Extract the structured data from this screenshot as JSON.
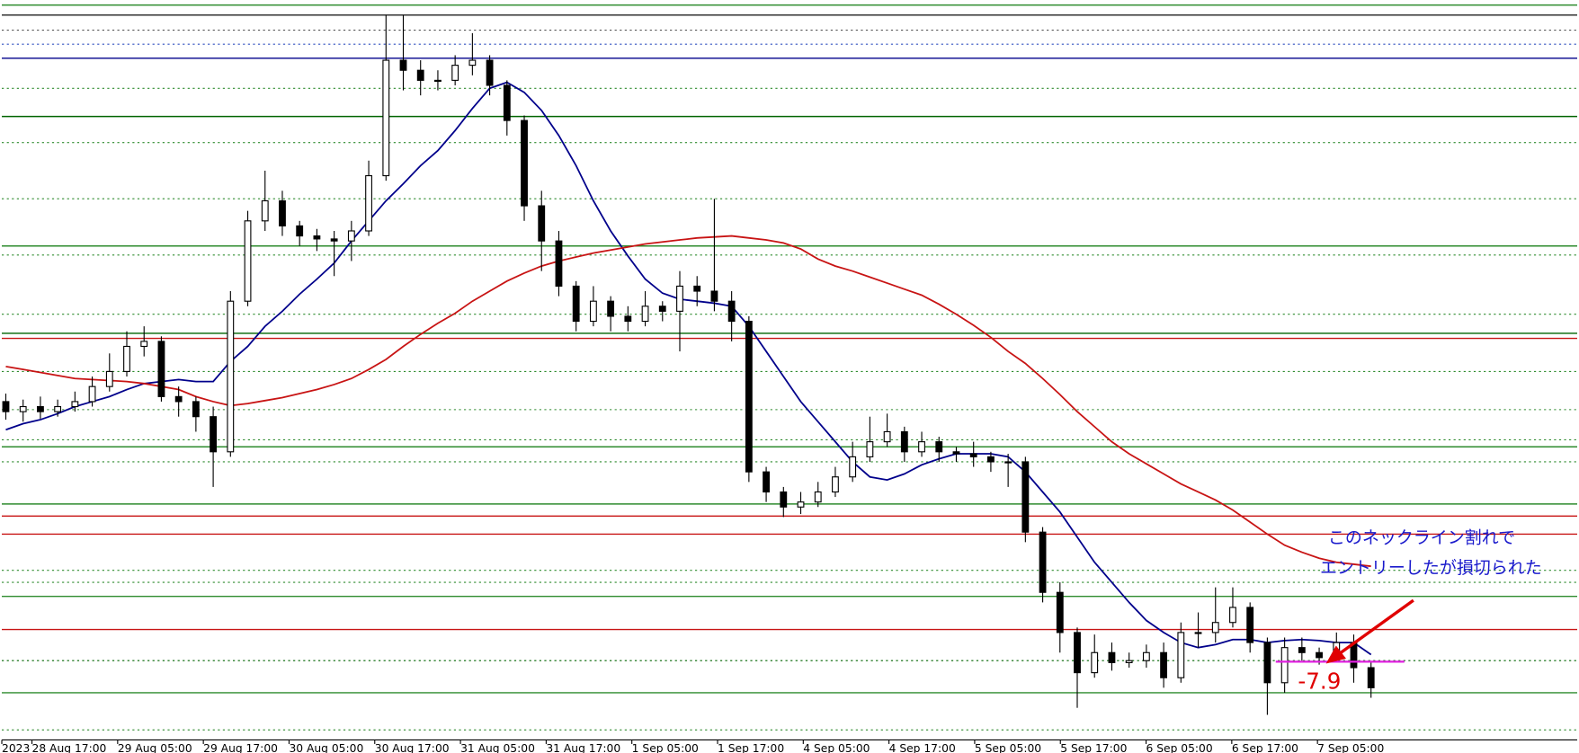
{
  "chart_data": {
    "type": "candlestick",
    "ylim": [
      0,
      750
    ],
    "x_labels": [
      "2023",
      "28 Aug 17:00",
      "29 Aug 05:00",
      "29 Aug 17:00",
      "30 Aug 05:00",
      "30 Aug 17:00",
      "31 Aug 05:00",
      "31 Aug 17:00",
      "1 Sep 05:00",
      "1 Sep 17:00",
      "4 Sep 05:00",
      "4 Sep 17:00",
      "5 Sep 05:00",
      "5 Sep 17:00",
      "6 Sep 05:00",
      "6 Sep 17:00",
      "7 Sep 05:00"
    ],
    "open": [
      350,
      340,
      345,
      340,
      345,
      350,
      365,
      380,
      405,
      410,
      355,
      350,
      335,
      300,
      450,
      530,
      550,
      525,
      515,
      512,
      510,
      520,
      575,
      690,
      680,
      670,
      670,
      685,
      690,
      665,
      630,
      545,
      510,
      465,
      430,
      450,
      435,
      430,
      445,
      440,
      465,
      460,
      450,
      430,
      280,
      260,
      245,
      250,
      260,
      275,
      295,
      310,
      320,
      300,
      310,
      300,
      298,
      295,
      290,
      290,
      220,
      160,
      120,
      80,
      100,
      90,
      92,
      100,
      75,
      120,
      120,
      130,
      145,
      110,
      70,
      105,
      100,
      95,
      110,
      85
    ],
    "high": [
      358,
      352,
      355,
      352,
      360,
      375,
      398,
      420,
      425,
      415,
      365,
      355,
      345,
      460,
      540,
      580,
      560,
      530,
      522,
      520,
      530,
      590,
      735,
      735,
      690,
      680,
      695,
      717,
      695,
      670,
      635,
      560,
      520,
      470,
      465,
      455,
      445,
      460,
      450,
      480,
      475,
      552,
      460,
      435,
      285,
      265,
      260,
      270,
      285,
      310,
      335,
      338,
      325,
      320,
      315,
      305,
      310,
      300,
      298,
      295,
      225,
      170,
      125,
      118,
      110,
      100,
      108,
      110,
      130,
      140,
      165,
      165,
      150,
      115,
      115,
      115,
      105,
      120,
      118,
      90
    ],
    "low": [
      332,
      330,
      333,
      335,
      340,
      345,
      360,
      375,
      395,
      350,
      335,
      320,
      265,
      295,
      445,
      520,
      515,
      505,
      500,
      475,
      490,
      515,
      570,
      660,
      655,
      660,
      665,
      675,
      655,
      615,
      530,
      480,
      455,
      420,
      425,
      420,
      420,
      425,
      430,
      400,
      445,
      440,
      410,
      270,
      250,
      235,
      238,
      245,
      255,
      270,
      290,
      305,
      290,
      295,
      290,
      290,
      285,
      280,
      265,
      210,
      150,
      100,
      45,
      75,
      82,
      85,
      85,
      65,
      70,
      105,
      110,
      125,
      100,
      38,
      60,
      92,
      88,
      90,
      70,
      55
    ],
    "close": [
      340,
      345,
      340,
      345,
      350,
      365,
      380,
      405,
      410,
      355,
      350,
      335,
      300,
      450,
      530,
      550,
      525,
      515,
      512,
      510,
      520,
      575,
      690,
      680,
      670,
      670,
      685,
      690,
      665,
      630,
      545,
      510,
      465,
      430,
      450,
      435,
      430,
      445,
      440,
      465,
      460,
      450,
      430,
      280,
      260,
      245,
      250,
      260,
      275,
      295,
      310,
      320,
      300,
      310,
      300,
      298,
      295,
      290,
      290,
      220,
      160,
      120,
      80,
      100,
      90,
      92,
      100,
      75,
      120,
      120,
      130,
      145,
      110,
      70,
      105,
      100,
      95,
      110,
      85,
      65
    ],
    "moving_averages": [
      {
        "color": "#00008b",
        "values": [
          322,
          328,
          332,
          338,
          345,
          350,
          355,
          362,
          368,
          370,
          372,
          370,
          370,
          390,
          405,
          425,
          440,
          457,
          472,
          488,
          510,
          530,
          550,
          567,
          585,
          600,
          620,
          642,
          662,
          668,
          658,
          640,
          615,
          585,
          550,
          520,
          495,
          472,
          458,
          452,
          450,
          448,
          445,
          425,
          400,
          375,
          350,
          330,
          310,
          290,
          275,
          272,
          278,
          287,
          293,
          298,
          298,
          298,
          295,
          280,
          260,
          240,
          215,
          190,
          170,
          150,
          132,
          120,
          110,
          105,
          108,
          113,
          113,
          110,
          112,
          113,
          112,
          110,
          110,
          98
        ]
      },
      {
        "color": "#c81414",
        "values": [
          385,
          382,
          379,
          376,
          373,
          372,
          371,
          370,
          368,
          365,
          362,
          355,
          350,
          346,
          348,
          351,
          354,
          358,
          362,
          367,
          373,
          382,
          392,
          405,
          417,
          428,
          438,
          450,
          460,
          470,
          478,
          485,
          490,
          494,
          498,
          501,
          504,
          507,
          509,
          511,
          513,
          514,
          515,
          513,
          511,
          508,
          502,
          492,
          485,
          480,
          474,
          468,
          462,
          456,
          447,
          437,
          426,
          414,
          400,
          388,
          373,
          357,
          340,
          325,
          310,
          298,
          288,
          278,
          268,
          260,
          252,
          242,
          230,
          218,
          207,
          200,
          194,
          190,
          188,
          186
        ]
      }
    ],
    "levels": [
      {
        "value": 745,
        "color": "#2e8b2e",
        "dashed": false
      },
      {
        "value": 735,
        "color": "#333333",
        "dashed": false
      },
      {
        "value": 720,
        "color": "#555555",
        "dashed": true
      },
      {
        "value": 706,
        "color": "#3050c0",
        "dashed": true
      },
      {
        "value": 692,
        "color": "#00008b",
        "dashed": false
      },
      {
        "value": 662,
        "color": "#2e8b2e",
        "dashed": true
      },
      {
        "value": 634,
        "color": "#006400",
        "dashed": false
      },
      {
        "value": 608,
        "color": "#2e8b2e",
        "dashed": true
      },
      {
        "value": 552,
        "color": "#2e8b2e",
        "dashed": true
      },
      {
        "value": 505,
        "color": "#2e8b2e",
        "dashed": false
      },
      {
        "value": 496,
        "color": "#2e8b2e",
        "dashed": true
      },
      {
        "value": 437,
        "color": "#2e8b2e",
        "dashed": true
      },
      {
        "value": 418,
        "color": "#006400",
        "dashed": false
      },
      {
        "value": 413,
        "color": "#c81414",
        "dashed": false
      },
      {
        "value": 380,
        "color": "#2e8b2e",
        "dashed": true
      },
      {
        "value": 342,
        "color": "#2e8b2e",
        "dashed": true
      },
      {
        "value": 312,
        "color": "#2e8b2e",
        "dashed": true
      },
      {
        "value": 305,
        "color": "#2e8b2e",
        "dashed": false
      },
      {
        "value": 290,
        "color": "#2e8b2e",
        "dashed": true
      },
      {
        "value": 248,
        "color": "#2e8b2e",
        "dashed": false
      },
      {
        "value": 236,
        "color": "#c81414",
        "dashed": false
      },
      {
        "value": 218,
        "color": "#c81414",
        "dashed": false
      },
      {
        "value": 182,
        "color": "#2e8b2e",
        "dashed": true
      },
      {
        "value": 170,
        "color": "#2e8b2e",
        "dashed": true
      },
      {
        "value": 156,
        "color": "#2e8b2e",
        "dashed": false
      },
      {
        "value": 123,
        "color": "#c81414",
        "dashed": false
      },
      {
        "value": 92,
        "color": "#006400",
        "dashed": true
      },
      {
        "value": 60,
        "color": "#2e8b2e",
        "dashed": false
      },
      {
        "value": 23,
        "color": "#2e8b2e",
        "dashed": true
      }
    ],
    "annotations": [
      "このネックライン割れで",
      "エントリーしたが損切られた",
      "-7.9"
    ]
  }
}
